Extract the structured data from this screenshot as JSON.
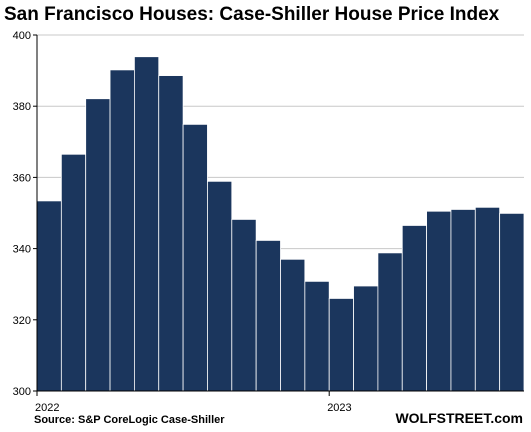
{
  "chart_data": {
    "type": "bar",
    "title": "San Francisco Houses: Case-Shiller House Price Index",
    "xlabel": "",
    "ylabel": "",
    "ylim": [
      300,
      400
    ],
    "yticks": [
      300,
      320,
      340,
      360,
      380,
      400
    ],
    "grid": true,
    "legend": "none",
    "bar_color": "#1b365d",
    "categories": [
      "2022-01",
      "2022-02",
      "2022-03",
      "2022-04",
      "2022-05",
      "2022-06",
      "2022-07",
      "2022-08",
      "2022-09",
      "2022-10",
      "2022-11",
      "2022-12",
      "2023-01",
      "2023-02",
      "2023-03",
      "2023-04",
      "2023-05",
      "2023-06",
      "2023-07",
      "2023-08"
    ],
    "x_tick_labels": [
      {
        "index": 0,
        "label": "2022"
      },
      {
        "index": 12,
        "label": "2023"
      }
    ],
    "values": [
      353.4,
      366.5,
      382.1,
      390.2,
      393.9,
      388.6,
      374.9,
      358.9,
      348.2,
      342.3,
      337.0,
      330.8,
      326.0,
      329.5,
      338.8,
      346.5,
      350.5,
      351.0,
      351.6,
      349.9
    ]
  },
  "footer": {
    "source": "Source: S&P CoreLogic Case-Shiller",
    "brand": "WOLFSTREET.com"
  }
}
